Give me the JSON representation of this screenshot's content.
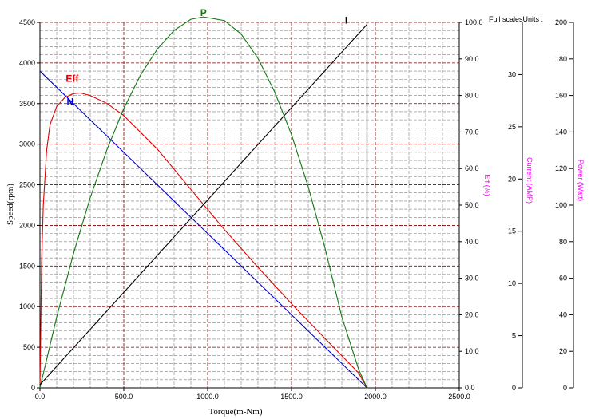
{
  "header": {
    "full_scales_label": "Full scalesUnits :"
  },
  "colors": {
    "speed": "#0000cc",
    "efficiency": "#dd0000",
    "power": "#117711",
    "current": "#000000",
    "grid_major": "#800000",
    "grid_minor": "#808080",
    "eff_axis_title": "#ff00ff"
  },
  "chart_data": {
    "type": "line",
    "xlabel": "Torque(m-Nm)",
    "ylabel": "Speed(rpm)",
    "x_ticks": [
      "0.0",
      "500.0",
      "1000.0",
      "1500.0",
      "2000.0",
      "2500.0"
    ],
    "xlim": [
      0,
      2500
    ],
    "y_ticks": [
      "0",
      "500",
      "1000",
      "1500",
      "2000",
      "2500",
      "3000",
      "3500",
      "4000",
      "4500"
    ],
    "ylim": [
      0,
      4500
    ],
    "grid": true,
    "secondary_axes": [
      {
        "title": "Eff (%)",
        "ticks": [
          "0.0",
          "10.0",
          "20.0",
          "30.0",
          "40.0",
          "50.0",
          "60.0",
          "70.0",
          "80.0",
          "90.0",
          "100.0"
        ],
        "range": [
          0,
          100
        ]
      },
      {
        "title": "Current (AMP)",
        "ticks": [
          "0",
          "5",
          "10",
          "15",
          "20",
          "25",
          "30"
        ],
        "range": [
          0,
          35
        ]
      },
      {
        "title": "Power (Watt)",
        "ticks": [
          "0",
          "20",
          "40",
          "60",
          "80",
          "100",
          "120",
          "140",
          "160",
          "180",
          "200"
        ],
        "range": [
          0,
          200
        ]
      }
    ],
    "stall_torque": 1950,
    "series": [
      {
        "name": "N",
        "axis": "Speed(rpm)",
        "x": [
          0,
          1950
        ],
        "y": [
          3900,
          0
        ]
      },
      {
        "name": "Eff",
        "axis": "Eff (%)",
        "x": [
          0,
          10,
          20,
          40,
          60,
          100,
          150,
          200,
          240,
          300,
          400,
          500,
          700,
          900,
          1100,
          1300,
          1500,
          1700,
          1800,
          1900,
          1950
        ],
        "y": [
          0,
          35,
          50,
          65,
          72,
          77,
          79.5,
          80.5,
          80.7,
          80,
          77.8,
          74.5,
          65.3,
          54.3,
          43.3,
          33,
          23,
          13.5,
          8.8,
          4.1,
          0
        ]
      },
      {
        "name": "P",
        "axis": "Power (Watt)",
        "x": [
          0,
          100,
          200,
          300,
          400,
          500,
          600,
          700,
          800,
          900,
          975,
          1100,
          1200,
          1300,
          1400,
          1500,
          1600,
          1700,
          1800,
          1900,
          1950
        ],
        "y": [
          0,
          38.8,
          73.5,
          104.1,
          130.5,
          152.9,
          171.2,
          185.4,
          195.6,
          201.7,
          203,
          201,
          193.6,
          180.3,
          161.9,
          138.5,
          110,
          76.4,
          38.8,
          10.2,
          0
        ]
      },
      {
        "name": "I",
        "axis": "Current (AMP)",
        "x": [
          0,
          1950
        ],
        "y": [
          0.3,
          34.8
        ]
      }
    ]
  }
}
